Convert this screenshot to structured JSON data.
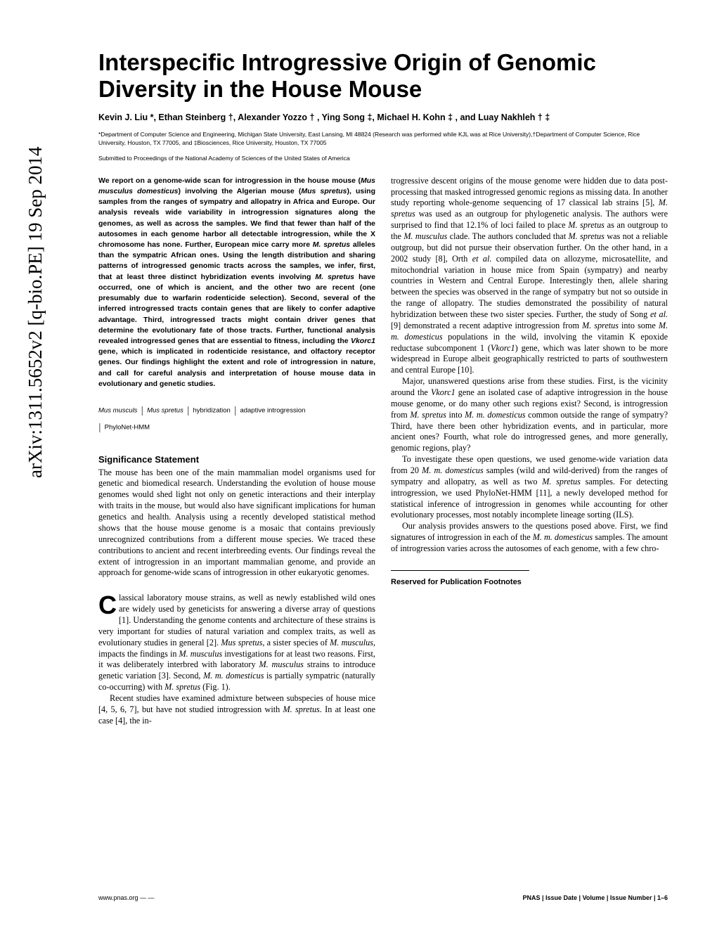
{
  "arxiv": "arXiv:1311.5652v2 [q-bio.PE] 19 Sep 2014",
  "title": "Interspecific Introgressive Origin of Genomic Diversity in the House Mouse",
  "authors": "Kevin J. Liu *, Ethan Steinberg †, Alexander Yozzo † , Ying Song ‡, Michael H. Kohn ‡ ,  and Luay Nakhleh † ‡",
  "affiliations": "*Department of Computer Science and Engineering, Michigan State University, East Lansing, MI 48824 (Research was performed while KJL was at Rice University),†Department of Computer Science, Rice University, Houston, TX 77005, and ‡Biosciences, Rice University, Houston, TX 77005",
  "submitted": "Submitted to Proceedings of the National Academy of Sciences of the United States of America",
  "abstract_parts": {
    "p1": "We report on a genome-wide scan for introgression in the house mouse (",
    "p1_em1": "Mus musculus domesticus",
    "p1_b": ") involving the Algerian mouse (",
    "p1_em2": "Mus spretus",
    "p1_c": "), using samples from the ranges of sympatry and allopatry in Africa and Europe. Our analysis reveals wide variability in introgression signatures along the genomes, as well as across the samples. We find that fewer than half of the autosomes in each genome harbor all detectable introgression, while the X chromosome has none. Further, European mice carry more ",
    "p1_em3": "M. spretus",
    "p1_d": " alleles than the sympatric African ones. Using the length distribution and sharing patterns of introgressed genomic tracts across the samples, we infer, first, that at least three distinct hybridization events involving ",
    "p1_em4": "M. spretus",
    "p1_e": " have occurred, one of which is ancient, and the other two are recent (one presumably due to warfarin rodenticide selection). Second, several of the inferred introgressed tracts contain genes that are likely to confer adaptive advantage. Third, introgressed tracts might contain driver genes that determine the evolutionary fate of those tracts. Further, functional analysis revealed introgressed genes that are essential to fitness, including the ",
    "p1_em5": "Vkorc1",
    "p1_f": " gene, which is implicated in rodenticide resistance, and olfactory receptor genes. Our findings highlight the extent and role of introgression in nature, and call for careful analysis and interpretation of house mouse data in evolutionary and genetic studies."
  },
  "keywords": {
    "k1": "Mus musculs",
    "k2": "Mus spretus",
    "k3": "hybridization",
    "k4": "adaptive introgression",
    "k5": "PhyloNet-HMM"
  },
  "sig_heading": "Significance Statement",
  "sig_text": "The mouse has been one of the main mammalian model organisms used for genetic and biomedical research. Understanding the evolution of house mouse genomes would shed light not only on genetic interactions and their interplay with traits in the mouse, but would also have significant implications for human genetics and health. Analysis using a recently developed statistical method shows that the house mouse genome is a mosaic that contains previously unrecognized contributions from a different mouse species. We traced these contributions to ancient and recent interbreeding events. Our findings reveal the extent of introgression in an important mammalian genome, and provide an approach for genome-wide scans of introgression in other eukaryotic genomes.",
  "body": {
    "dropcap": "C",
    "p1a": "lassical laboratory mouse strains, as well as newly established wild ones are widely used by geneticists for answering a diverse array of questions [1]. Understanding the genome contents and architecture of these strains is very important for studies of natural variation and complex traits, as well as evolutionary studies in general [2]. ",
    "p1_em1": "Mus spretus",
    "p1b": ", a sister species of ",
    "p1_em2": "M. musculus",
    "p1c": ", impacts the findings in ",
    "p1_em3": "M. musculus",
    "p1d": " investigations for at least two reasons. First, it was deliberately interbred with laboratory ",
    "p1_em4": "M. musculus",
    "p1e": " strains to introduce genetic variation [3]. Second, ",
    "p1_em5": "M. m. domesticus",
    "p1f": " is partially sympatric (naturally co-occurring) with ",
    "p1_em6": "M. spretus",
    "p1g": " (Fig. 1).",
    "p2a": "Recent studies have examined admixture between subspecies of house mice [4, 5, 6, 7], but have not studied introgression with ",
    "p2_em1": "M. spretus",
    "p2b": ". In at least one case [4], the in-",
    "c2_p1a": "trogressive descent origins of the mouse genome were hidden due to data post-processing that masked introgressed genomic regions as missing data. In another study reporting whole-genome sequencing of 17 classical lab strains [5], ",
    "c2_p1_em1": "M. spretus",
    "c2_p1b": " was used as an outgroup for phylogenetic analysis. The authors were surprised to find that 12.1% of loci failed to place ",
    "c2_p1_em2": "M. spretus",
    "c2_p1c": " as an outgroup to the ",
    "c2_p1_em3": "M. musculus",
    "c2_p1d": " clade. The authors concluded that ",
    "c2_p1_em4": "M. spretus",
    "c2_p1e": " was not a reliable outgroup, but did not pursue their observation further. On the other hand, in a 2002 study [8], Orth ",
    "c2_p1_em5": "et al.",
    "c2_p1f": " compiled data on allozyme, microsatellite, and mitochondrial variation in house mice from Spain (sympatry) and nearby countries in Western and Central Europe. Interestingly then, allele sharing between the species was observed in the range of sympatry but not so outside in the range of allopatry. The studies demonstrated the possibility of natural hybridization between these two sister species. Further, the study of Song ",
    "c2_p1_em6": "et al.",
    "c2_p1g": " [9] demonstrated a recent adaptive introgression from ",
    "c2_p1_em7": "M. spretus",
    "c2_p1h": " into some ",
    "c2_p1_em8": "M. m. domesticus",
    "c2_p1i": " populations in the wild, involving the vitamin K epoxide reductase subcomponent 1 (",
    "c2_p1_em9": "Vkorc1",
    "c2_p1j": ") gene, which was later shown to be more widespread in Europe albeit geographically restricted to parts of southwestern and central Europe [10].",
    "c2_p2a": "Major, unanswered questions arise from these studies. First, is the vicinity around the ",
    "c2_p2_em1": "Vkorc1",
    "c2_p2b": " gene an isolated case of adaptive introgression in the house mouse genome, or do many other such regions exist? Second, is introgression from ",
    "c2_p2_em2": "M. spretus",
    "c2_p2c": " into ",
    "c2_p2_em3": "M. m. domesticus",
    "c2_p2d": " common outside the range of sympatry? Third, have there been other hybridization events, and in particular, more ancient ones? Fourth, what role do introgressed genes, and more generally, genomic regions, play?",
    "c2_p3a": "To investigate these open questions, we used genome-wide variation data from 20 ",
    "c2_p3_em1": "M. m. domesticus",
    "c2_p3b": " samples (wild and wild-derived) from the ranges of sympatry and allopatry, as well as two ",
    "c2_p3_em2": "M. spretus",
    "c2_p3c": " samples. For detecting introgression, we used PhyloNet-HMM [11], a newly developed method for statistical inference of introgression in genomes while accounting for other evolutionary processes, most notably incomplete lineage sorting (ILS).",
    "c2_p4a": "Our analysis provides answers to the questions posed above. First, we find signatures of introgression in each of the ",
    "c2_p4_em1": "M. m. domesticus",
    "c2_p4b": " samples. The amount of introgression varies across the autosomes of each genome, with a few chro-"
  },
  "footnote_heading": "Reserved for Publication Footnotes",
  "footer": {
    "left": "www.pnas.org — —",
    "right_prefix": "PNAS",
    "right_rest": " | Issue Date | Volume | Issue Number | 1–6"
  }
}
